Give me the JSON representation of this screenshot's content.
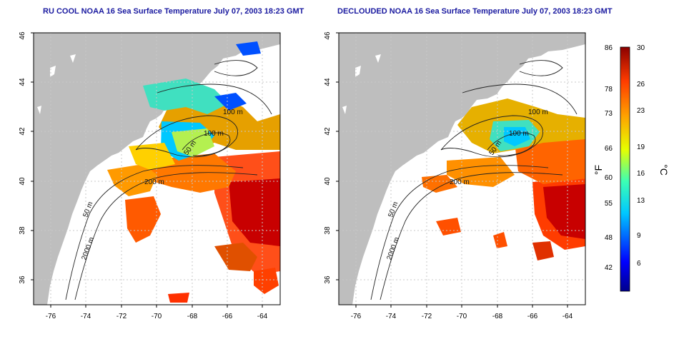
{
  "panels": [
    {
      "title": "RU COOL NOAA 16 Sea Surface Temperature July 07, 2003 18:23 GMT"
    },
    {
      "title": "DECLOUDED NOAA 16 Sea Surface Temperature July 07, 2003 18:23 GMT"
    }
  ],
  "axes": {
    "longitude_ticks": [
      "-76",
      "-74",
      "-72",
      "-70",
      "-68",
      "-66",
      "-64"
    ],
    "latitude_ticks": [
      "36",
      "38",
      "40",
      "42",
      "44",
      "46"
    ],
    "longitude_range": [
      -77,
      -63
    ],
    "latitude_range": [
      35,
      46
    ]
  },
  "contour_labels": [
    "100 m",
    "100 m",
    "50 m",
    "200 m",
    "50 m",
    "2000 m"
  ],
  "colorbar": {
    "fahrenheit_unit": "°F",
    "celsius_unit": "°C",
    "fahrenheit_ticks": [
      "86",
      "78",
      "73",
      "66",
      "60",
      "55",
      "48",
      "42"
    ],
    "celsius_ticks": [
      "30",
      "26",
      "23",
      "19",
      "16",
      "13",
      "9",
      "6"
    ],
    "range_c": [
      3,
      30
    ],
    "colors": [
      "#00008b",
      "#0000ff",
      "#00c8ff",
      "#3cffb4",
      "#e6ff00",
      "#ffa000",
      "#ff3c00",
      "#8b0000"
    ]
  },
  "colors": {
    "land": "#bebebe",
    "title": "#1a1aa0",
    "grid": "#c8c8c8"
  }
}
